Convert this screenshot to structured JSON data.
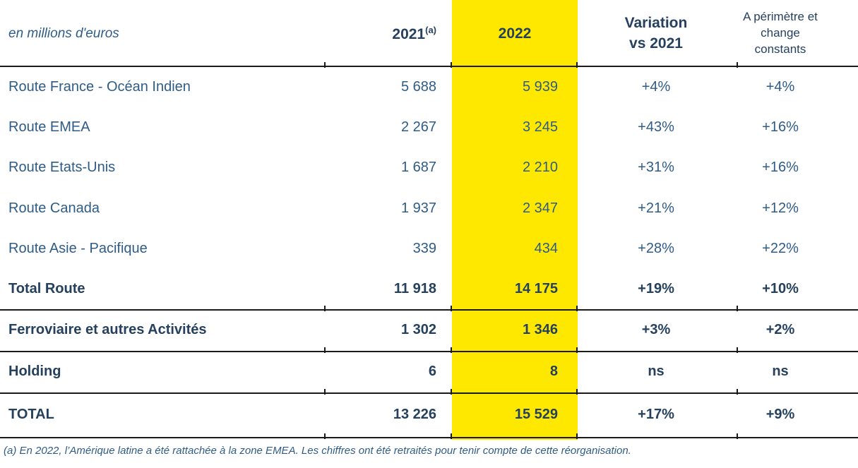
{
  "table": {
    "unit_label": "en millions d'euros",
    "header": {
      "col_2021": "2021",
      "col_2021_superscript": "(a)",
      "col_2022": "2022",
      "col_variation": "Variation\nvs 2021",
      "col_constant": "A périmètre et\nchange\nconstants"
    },
    "highlight_color": "#FFE800",
    "text_color_regular": "#2E5C87",
    "text_color_bold": "#25415E",
    "rows": [
      {
        "label": "Route France - Océan Indien",
        "v2021": "5 688",
        "v2022": "5 939",
        "variation": "+4%",
        "constant": "+4%",
        "bold": false
      },
      {
        "label": "Route EMEA",
        "v2021": "2 267",
        "v2022": "3 245",
        "variation": "+43%",
        "constant": "+16%",
        "bold": false
      },
      {
        "label": "Route Etats-Unis",
        "v2021": "1 687",
        "v2022": "2 210",
        "variation": "+31%",
        "constant": "+16%",
        "bold": false
      },
      {
        "label": "Route Canada",
        "v2021": "1 937",
        "v2022": "2 347",
        "variation": "+21%",
        "constant": "+12%",
        "bold": false
      },
      {
        "label": "Route Asie - Pacifique",
        "v2021": "339",
        "v2022": "434",
        "variation": "+28%",
        "constant": "+22%",
        "bold": false
      },
      {
        "label": "Total Route",
        "v2021": "11 918",
        "v2022": "14 175",
        "variation": "+19%",
        "constant": "+10%",
        "bold": true
      },
      {
        "label": "Ferroviaire et autres Activités",
        "v2021": "1 302",
        "v2022": "1 346",
        "variation": "+3%",
        "constant": "+2%",
        "bold": true
      },
      {
        "label": "Holding",
        "v2021": "6",
        "v2022": "8",
        "variation": "ns",
        "constant": "ns",
        "bold": true
      },
      {
        "label": "TOTAL",
        "v2021": "13 226",
        "v2022": "15 529",
        "variation": "+17%",
        "constant": "+9%",
        "bold": true
      }
    ]
  },
  "footnote": "(a) En 2022, l’Amérique latine a été rattachée à la zone EMEA. Les chiffres ont été retraités pour tenir compte de cette réorganisation."
}
